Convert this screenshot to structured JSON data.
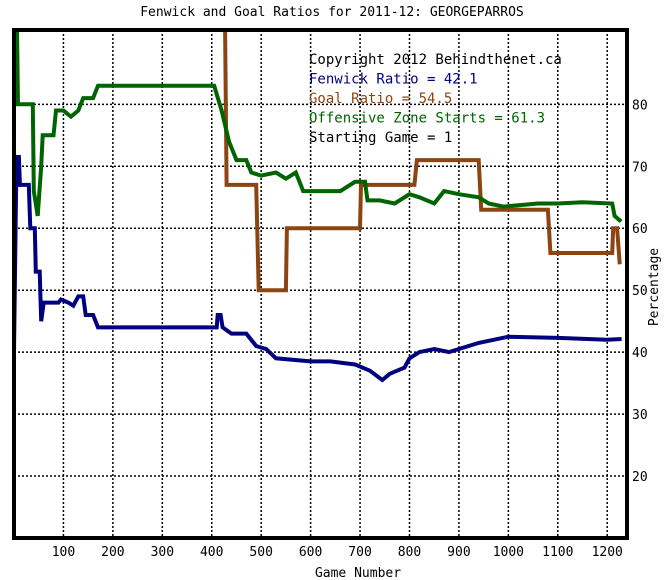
{
  "chart_data": {
    "type": "line",
    "title": "Fenwick and Goal Ratios for 2011-12: GEORGEPARROS",
    "xlabel": "Game Number",
    "ylabel": "Percentage",
    "xlim": [
      0,
      1240
    ],
    "ylim": [
      10,
      92
    ],
    "x_ticks": [
      100,
      200,
      300,
      400,
      500,
      600,
      700,
      800,
      900,
      1000,
      1100,
      1200
    ],
    "y_ticks": [
      20,
      30,
      40,
      50,
      60,
      70,
      80
    ],
    "grid": true,
    "legend_position": "top-right",
    "annotations": [
      {
        "text": "Copyright 2012 Behindthenet.ca",
        "color": "#000000"
      },
      {
        "text": "Fenwick Ratio = 42.1",
        "color": "#000080"
      },
      {
        "text": "Goal Ratio = 54.5",
        "color": "#8B4513"
      },
      {
        "text": "Offensive Zone Starts = 61.3",
        "color": "#006400"
      },
      {
        "text": "Starting Game = 1",
        "color": "#000000"
      }
    ],
    "series": [
      {
        "name": "Fenwick Ratio",
        "color": "#000080",
        "points": [
          [
            0,
            40
          ],
          [
            5,
            71.5
          ],
          [
            10,
            71.5
          ],
          [
            12,
            67
          ],
          [
            30,
            67
          ],
          [
            33,
            60
          ],
          [
            42,
            60
          ],
          [
            44,
            53
          ],
          [
            52,
            53
          ],
          [
            55,
            45
          ],
          [
            60,
            48
          ],
          [
            90,
            48
          ],
          [
            95,
            48.5
          ],
          [
            110,
            48
          ],
          [
            120,
            47.5
          ],
          [
            130,
            49
          ],
          [
            140,
            49
          ],
          [
            145,
            46
          ],
          [
            160,
            46
          ],
          [
            170,
            44
          ],
          [
            300,
            44
          ],
          [
            410,
            44
          ],
          [
            412,
            46
          ],
          [
            418,
            46
          ],
          [
            422,
            44
          ],
          [
            440,
            43
          ],
          [
            470,
            43
          ],
          [
            490,
            41
          ],
          [
            510,
            40.5
          ],
          [
            530,
            39
          ],
          [
            600,
            38.5
          ],
          [
            640,
            38.5
          ],
          [
            690,
            38
          ],
          [
            720,
            37
          ],
          [
            745,
            35.5
          ],
          [
            760,
            36.5
          ],
          [
            790,
            37.5
          ],
          [
            800,
            39
          ],
          [
            820,
            40
          ],
          [
            850,
            40.5
          ],
          [
            880,
            40
          ],
          [
            900,
            40.5
          ],
          [
            940,
            41.5
          ],
          [
            1000,
            42.5
          ],
          [
            1100,
            42.3
          ],
          [
            1200,
            42.0
          ],
          [
            1225,
            42.1
          ]
        ]
      },
      {
        "name": "Goal Ratio",
        "color": "#8B4513",
        "points": [
          [
            427,
            92
          ],
          [
            430,
            67
          ],
          [
            490,
            67
          ],
          [
            495,
            50
          ],
          [
            550,
            50
          ],
          [
            552,
            60
          ],
          [
            700,
            60
          ],
          [
            702,
            67
          ],
          [
            810,
            67
          ],
          [
            815,
            71
          ],
          [
            940,
            71
          ],
          [
            945,
            63
          ],
          [
            1080,
            63
          ],
          [
            1085,
            56
          ],
          [
            1210,
            56
          ],
          [
            1212,
            60
          ],
          [
            1220,
            60
          ],
          [
            1225,
            54.5
          ]
        ]
      },
      {
        "name": "Offensive Zone Starts",
        "color": "#006400",
        "points": [
          [
            0,
            92
          ],
          [
            6,
            92
          ],
          [
            8,
            80
          ],
          [
            38,
            80
          ],
          [
            40,
            66
          ],
          [
            48,
            62
          ],
          [
            55,
            70
          ],
          [
            58,
            75
          ],
          [
            80,
            75
          ],
          [
            85,
            79
          ],
          [
            100,
            79
          ],
          [
            115,
            78
          ],
          [
            130,
            79
          ],
          [
            140,
            81
          ],
          [
            160,
            81
          ],
          [
            170,
            83
          ],
          [
            300,
            83
          ],
          [
            405,
            83
          ],
          [
            420,
            79
          ],
          [
            435,
            74
          ],
          [
            450,
            71
          ],
          [
            470,
            71
          ],
          [
            480,
            69
          ],
          [
            500,
            68.5
          ],
          [
            530,
            69
          ],
          [
            550,
            68
          ],
          [
            570,
            69
          ],
          [
            585,
            66
          ],
          [
            660,
            66
          ],
          [
            690,
            67.5
          ],
          [
            710,
            67.5
          ],
          [
            715,
            64.5
          ],
          [
            740,
            64.5
          ],
          [
            770,
            64
          ],
          [
            800,
            65.5
          ],
          [
            820,
            65
          ],
          [
            850,
            64
          ],
          [
            870,
            66
          ],
          [
            900,
            65.5
          ],
          [
            940,
            65
          ],
          [
            960,
            64
          ],
          [
            990,
            63.5
          ],
          [
            1060,
            64
          ],
          [
            1100,
            64
          ],
          [
            1150,
            64.2
          ],
          [
            1210,
            64
          ],
          [
            1215,
            62
          ],
          [
            1225,
            61.3
          ]
        ]
      }
    ]
  }
}
